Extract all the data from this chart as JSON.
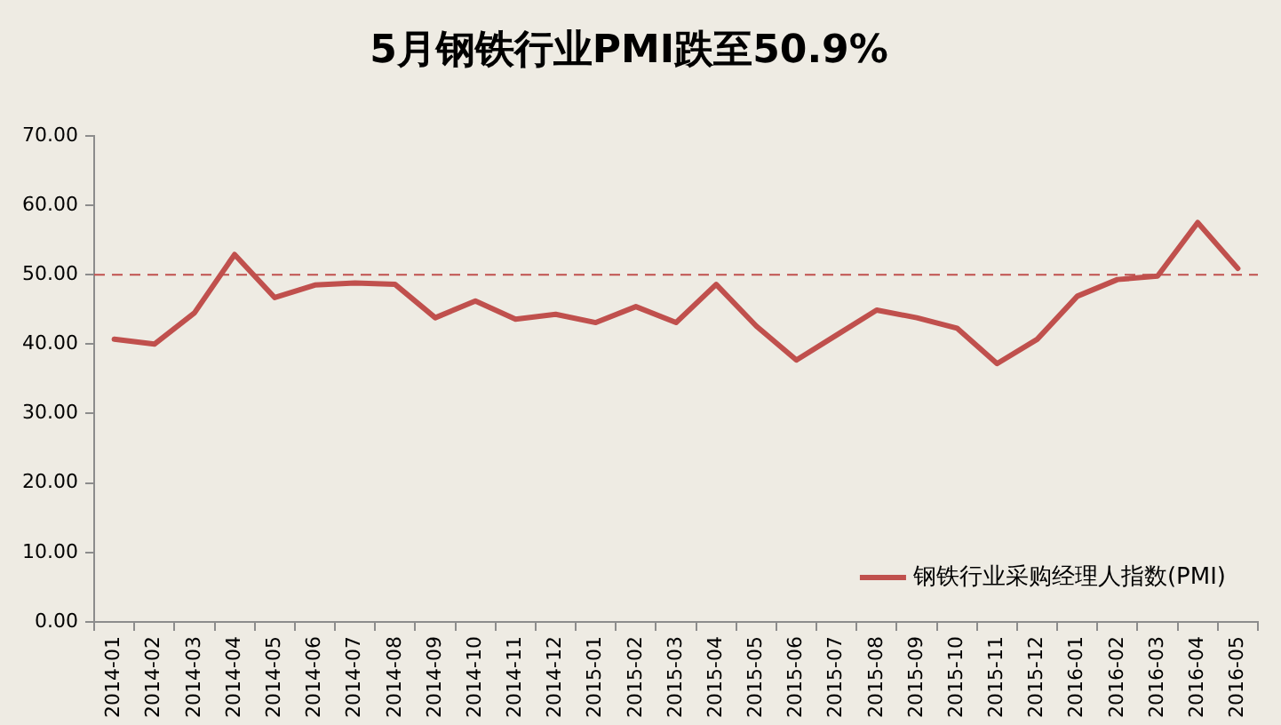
{
  "chart_data": {
    "type": "line",
    "title": "5月钢铁行业PMI跌至50.9%",
    "categories": [
      "2014-01",
      "2014-02",
      "2014-03",
      "2014-04",
      "2014-05",
      "2014-06",
      "2014-07",
      "2014-08",
      "2014-09",
      "2014-10",
      "2014-11",
      "2014-12",
      "2015-01",
      "2015-02",
      "2015-03",
      "2015-04",
      "2015-05",
      "2015-06",
      "2015-07",
      "2015-08",
      "2015-09",
      "2015-10",
      "2015-11",
      "2015-12",
      "2016-01",
      "2016-02",
      "2016-03",
      "2016-04",
      "2016-05"
    ],
    "series": [
      {
        "name": "钢铁行业采购经理人指数(PMI)",
        "color": "#c0504d",
        "values": [
          40.7,
          40.0,
          44.5,
          52.9,
          46.7,
          48.5,
          48.8,
          48.6,
          43.8,
          46.2,
          43.6,
          44.3,
          43.1,
          45.4,
          43.1,
          48.6,
          42.6,
          37.7,
          41.3,
          44.9,
          43.8,
          42.3,
          37.2,
          40.7,
          46.9,
          49.3,
          49.8,
          57.5,
          50.9
        ]
      }
    ],
    "ylim": [
      0,
      70
    ],
    "yticks": [
      {
        "value": 0,
        "label": "0.00"
      },
      {
        "value": 10,
        "label": "10.00"
      },
      {
        "value": 20,
        "label": "20.00"
      },
      {
        "value": 30,
        "label": "30.00"
      },
      {
        "value": 40,
        "label": "40.00"
      },
      {
        "value": 50,
        "label": "50.00"
      },
      {
        "value": 60,
        "label": "60.00"
      },
      {
        "value": 70,
        "label": "70.00"
      }
    ],
    "ref_lines": [
      {
        "axis": "y",
        "value": 50,
        "color": "#c0504d",
        "line_style": "dashed"
      }
    ],
    "grid": false,
    "legend": "bottom right",
    "marker": "none",
    "line_style": "solid"
  }
}
